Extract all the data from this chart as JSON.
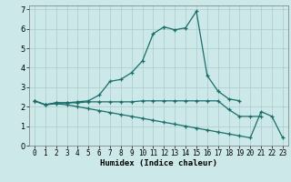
{
  "xlabel": "Humidex (Indice chaleur)",
  "xlim": [
    -0.5,
    23.5
  ],
  "ylim": [
    0,
    7.2
  ],
  "xticks": [
    0,
    1,
    2,
    3,
    4,
    5,
    6,
    7,
    8,
    9,
    10,
    11,
    12,
    13,
    14,
    15,
    16,
    17,
    18,
    19,
    20,
    21,
    22,
    23
  ],
  "yticks": [
    0,
    1,
    2,
    3,
    4,
    5,
    6,
    7
  ],
  "background_color": "#cce8e8",
  "grid_color": "#aacccc",
  "line_color": "#1a6e6a",
  "line1_x": [
    0,
    1,
    2,
    3,
    4,
    5,
    6,
    7,
    8,
    9,
    10,
    11,
    12,
    13,
    14,
    15,
    16,
    17,
    18,
    19
  ],
  "line1_y": [
    2.3,
    2.1,
    2.2,
    2.2,
    2.25,
    2.3,
    2.6,
    3.3,
    3.4,
    3.75,
    4.35,
    5.75,
    6.1,
    5.95,
    6.05,
    6.9,
    3.6,
    2.8,
    2.4,
    2.3
  ],
  "line2_x": [
    0,
    1,
    2,
    3,
    4,
    5,
    6,
    7,
    8,
    9,
    10,
    11,
    12,
    13,
    14,
    15,
    16,
    17,
    18,
    19,
    20,
    21
  ],
  "line2_y": [
    2.3,
    2.1,
    2.2,
    2.2,
    2.2,
    2.25,
    2.25,
    2.25,
    2.25,
    2.25,
    2.3,
    2.3,
    2.3,
    2.3,
    2.3,
    2.3,
    2.3,
    2.3,
    1.85,
    1.5,
    1.5,
    1.5
  ],
  "line3_x": [
    0,
    1,
    2,
    3,
    4,
    5,
    6,
    7,
    8,
    9,
    10,
    11,
    12,
    13,
    14,
    15,
    16,
    17,
    18,
    19,
    20,
    21,
    22,
    23
  ],
  "line3_y": [
    2.3,
    2.1,
    2.15,
    2.1,
    2.0,
    1.9,
    1.8,
    1.7,
    1.6,
    1.5,
    1.4,
    1.3,
    1.2,
    1.1,
    1.0,
    0.9,
    0.8,
    0.7,
    0.6,
    0.5,
    0.4,
    1.75,
    1.5,
    0.4
  ]
}
